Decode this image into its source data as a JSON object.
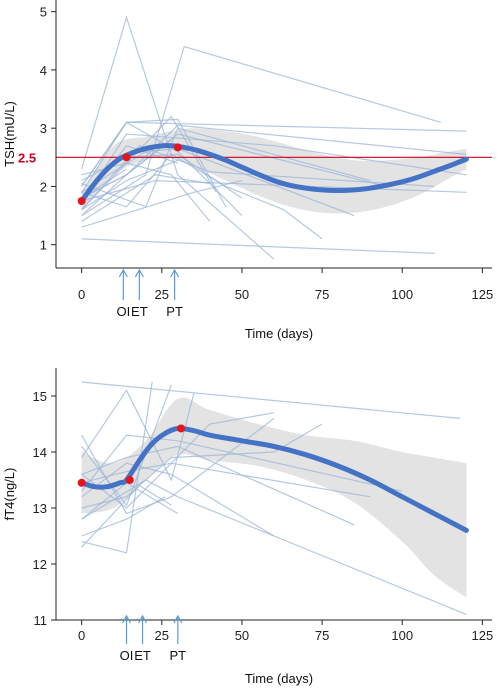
{
  "chart_data": [
    {
      "type": "line",
      "title": "",
      "xlabel": "Time (days)",
      "ylabel": "TSH(mU/L)",
      "xlim": [
        -8,
        128
      ],
      "ylim": [
        0.6,
        5.2
      ],
      "xticks": [
        0,
        25,
        50,
        75,
        100,
        125
      ],
      "yticks": [
        1,
        2,
        3,
        4,
        5
      ],
      "grid": false,
      "reference_line": {
        "y": 2.5,
        "label": "2.5",
        "color": "#d0021b"
      },
      "event_markers": [
        {
          "label": "OI",
          "x": 13
        },
        {
          "label": "ET",
          "x": 18
        },
        {
          "label": "PT",
          "x": 29
        }
      ],
      "series": [
        {
          "kind": "fit",
          "x": [
            0,
            4,
            8,
            12,
            16,
            20,
            24,
            28,
            32,
            36,
            40,
            45,
            50,
            55,
            60,
            65,
            70,
            75,
            80,
            85,
            90,
            95,
            100,
            105,
            110,
            115,
            120
          ],
          "y": [
            1.75,
            2.05,
            2.3,
            2.48,
            2.58,
            2.65,
            2.69,
            2.7,
            2.67,
            2.62,
            2.55,
            2.45,
            2.33,
            2.21,
            2.1,
            2.02,
            1.97,
            1.94,
            1.93,
            1.94,
            1.97,
            2.02,
            2.08,
            2.16,
            2.26,
            2.36,
            2.47
          ],
          "color": "#4472c4"
        }
      ],
      "confidence_band": {
        "x": [
          0,
          10,
          20,
          28,
          35,
          45,
          55,
          65,
          75,
          85,
          95,
          105,
          115,
          120
        ],
        "lower": [
          1.6,
          2.2,
          2.45,
          2.5,
          2.35,
          2.1,
          1.85,
          1.65,
          1.55,
          1.55,
          1.65,
          1.85,
          2.15,
          2.3
        ],
        "upper": [
          1.9,
          2.7,
          2.85,
          2.95,
          3.0,
          2.95,
          2.85,
          2.7,
          2.55,
          2.45,
          2.45,
          2.5,
          2.6,
          2.65
        ]
      },
      "key_points": [
        {
          "x": 0,
          "y": 1.75
        },
        {
          "x": 14,
          "y": 2.5
        },
        {
          "x": 30,
          "y": 2.67
        }
      ],
      "individual_traces": [
        {
          "x": [
            0,
            14,
            30
          ],
          "y": [
            1.6,
            2.1,
            2.45
          ]
        },
        {
          "x": [
            0,
            14,
            30,
            45
          ],
          "y": [
            2.0,
            3.1,
            3.15,
            1.65
          ]
        },
        {
          "x": [
            0,
            14,
            30,
            60
          ],
          "y": [
            2.3,
            4.9,
            2.2,
            0.75
          ]
        },
        {
          "x": [
            0,
            14,
            30,
            95
          ],
          "y": [
            1.5,
            2.2,
            2.9,
            2.0
          ]
        },
        {
          "x": [
            0,
            14,
            30
          ],
          "y": [
            1.7,
            2.7,
            2.4
          ]
        },
        {
          "x": [
            0,
            14,
            28,
            40
          ],
          "y": [
            1.6,
            2.4,
            2.2,
            1.4
          ]
        },
        {
          "x": [
            0,
            14,
            28
          ],
          "y": [
            1.8,
            2.2,
            2.8
          ]
        },
        {
          "x": [
            0,
            14,
            30,
            50
          ],
          "y": [
            2.1,
            2.5,
            2.55,
            1.8
          ]
        },
        {
          "x": [
            0,
            14,
            28,
            42
          ],
          "y": [
            2.2,
            2.4,
            3.2,
            1.9
          ]
        },
        {
          "x": [
            0,
            14,
            30,
            50
          ],
          "y": [
            1.9,
            3.1,
            2.6,
            1.5
          ]
        },
        {
          "x": [
            0,
            14,
            30,
            120
          ],
          "y": [
            1.8,
            2.2,
            3.05,
            2.55
          ]
        },
        {
          "x": [
            0,
            14,
            120
          ],
          "y": [
            2.0,
            3.1,
            2.95
          ]
        },
        {
          "x": [
            0,
            20,
            32,
            112
          ],
          "y": [
            1.5,
            2.2,
            4.4,
            3.1
          ]
        },
        {
          "x": [
            0,
            20,
            30,
            85
          ],
          "y": [
            1.9,
            2.6,
            2.65,
            1.5
          ]
        },
        {
          "x": [
            0,
            23,
            120
          ],
          "y": [
            1.75,
            2.1,
            1.9
          ]
        },
        {
          "x": [
            0,
            18,
            40,
            110
          ],
          "y": [
            1.6,
            2.7,
            2.25,
            2.0
          ]
        },
        {
          "x": [
            0,
            23,
            40
          ],
          "y": [
            1.4,
            2.2,
            2.05
          ]
        },
        {
          "x": [
            0,
            14,
            60,
            120
          ],
          "y": [
            1.7,
            2.9,
            2.7,
            2.2
          ]
        },
        {
          "x": [
            0,
            20,
            30,
            90
          ],
          "y": [
            2.05,
            1.65,
            3.0,
            2.1
          ]
        },
        {
          "x": [
            0,
            14
          ],
          "y": [
            1.8,
            2.3
          ]
        },
        {
          "x": [
            0,
            110
          ],
          "y": [
            1.1,
            0.85
          ]
        },
        {
          "x": [
            0,
            35,
            50
          ],
          "y": [
            1.3,
            1.9,
            2.1
          ]
        },
        {
          "x": [
            0,
            14,
            28,
            45,
            63,
            75
          ],
          "y": [
            1.9,
            1.65,
            2.55,
            2.0,
            1.6,
            1.1
          ]
        }
      ]
    },
    {
      "type": "line",
      "title": "",
      "xlabel": "Time (days)",
      "ylabel": "fT4(ng/L)",
      "xlim": [
        -8,
        128
      ],
      "ylim": [
        11,
        15.5
      ],
      "xticks": [
        0,
        25,
        50,
        75,
        100,
        125
      ],
      "yticks": [
        11,
        12,
        13,
        14,
        15
      ],
      "grid": false,
      "event_markers": [
        {
          "label": "OI",
          "x": 14
        },
        {
          "label": "ET",
          "x": 19
        },
        {
          "label": "PT",
          "x": 30
        }
      ],
      "series": [
        {
          "kind": "fit",
          "x": [
            0,
            4,
            8,
            12,
            14,
            18,
            22,
            26,
            30,
            35,
            40,
            50,
            60,
            70,
            80,
            90,
            100,
            110,
            120
          ],
          "y": [
            13.45,
            13.38,
            13.38,
            13.45,
            13.5,
            13.85,
            14.15,
            14.33,
            14.42,
            14.38,
            14.3,
            14.2,
            14.1,
            13.95,
            13.75,
            13.5,
            13.2,
            12.9,
            12.6
          ],
          "color": "#4472c4"
        }
      ],
      "confidence_band": {
        "x": [
          0,
          10,
          20,
          30,
          40,
          55,
          70,
          85,
          100,
          110,
          120
        ],
        "lower": [
          12.9,
          13.0,
          13.5,
          13.95,
          13.85,
          13.75,
          13.5,
          13.1,
          12.4,
          11.8,
          11.4
        ],
        "upper": [
          14.0,
          13.8,
          14.2,
          14.95,
          14.75,
          14.5,
          14.3,
          14.2,
          14.0,
          13.9,
          13.8
        ]
      },
      "key_points": [
        {
          "x": 0,
          "y": 13.45
        },
        {
          "x": 15,
          "y": 13.5
        },
        {
          "x": 31,
          "y": 14.42
        }
      ],
      "individual_traces": [
        {
          "x": [
            0,
            118
          ],
          "y": [
            15.25,
            14.6
          ]
        },
        {
          "x": [
            0,
            14,
            28
          ],
          "y": [
            14.1,
            13.05,
            15.2
          ]
        },
        {
          "x": [
            0,
            14,
            28,
            35
          ],
          "y": [
            13.9,
            15.1,
            13.5,
            15.05
          ]
        },
        {
          "x": [
            0,
            14,
            22
          ],
          "y": [
            12.4,
            12.2,
            15.25
          ]
        },
        {
          "x": [
            0,
            14,
            28,
            60
          ],
          "y": [
            14.3,
            12.9,
            13.2,
            14.6
          ]
        },
        {
          "x": [
            0,
            14,
            28,
            60,
            120
          ],
          "y": [
            13.2,
            13.8,
            13.6,
            12.5,
            11.1
          ]
        },
        {
          "x": [
            0,
            14,
            26
          ],
          "y": [
            12.5,
            12.8,
            13.2
          ]
        },
        {
          "x": [
            0,
            14,
            30,
            100
          ],
          "y": [
            13.3,
            14.3,
            14.2,
            13.3
          ]
        },
        {
          "x": [
            0,
            14,
            30,
            85
          ],
          "y": [
            13.6,
            13.9,
            14.1,
            12.7
          ]
        },
        {
          "x": [
            0,
            14,
            30
          ],
          "y": [
            12.8,
            13.45,
            12.9
          ]
        },
        {
          "x": [
            0,
            14,
            28,
            90
          ],
          "y": [
            13.45,
            13.65,
            13.8,
            13.2
          ]
        },
        {
          "x": [
            0,
            18,
            28
          ],
          "y": [
            12.3,
            13.4,
            13.05
          ]
        },
        {
          "x": [
            0,
            14,
            28,
            60,
            75
          ],
          "y": [
            13.0,
            13.2,
            13.9,
            14.0,
            14.5
          ]
        },
        {
          "x": [
            0,
            20,
            30,
            60
          ],
          "y": [
            12.8,
            13.5,
            13.2,
            12.5
          ]
        },
        {
          "x": [
            0,
            14,
            28,
            40,
            60
          ],
          "y": [
            13.6,
            13.0,
            13.8,
            14.5,
            14.7
          ]
        }
      ]
    }
  ]
}
